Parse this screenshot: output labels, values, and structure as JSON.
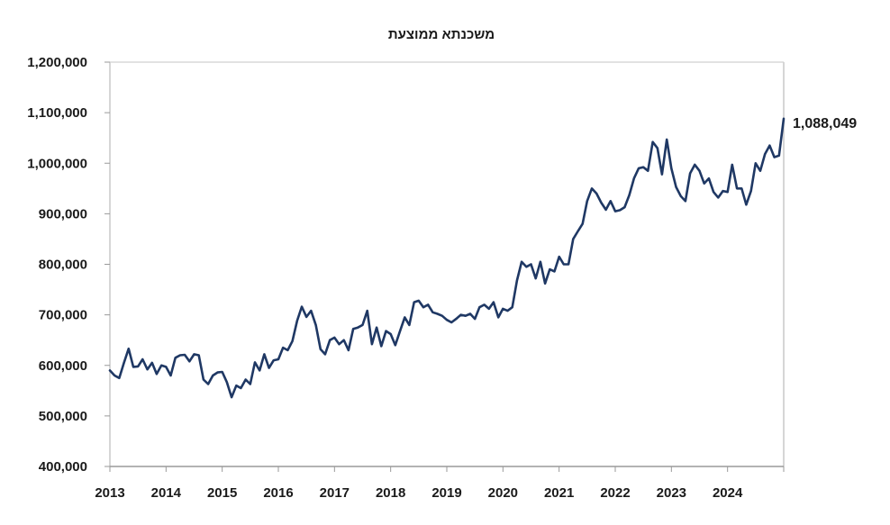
{
  "chart_data": {
    "type": "line",
    "title": "משכנתא ממוצעת",
    "xlabel": "",
    "ylabel": "",
    "xlim": [
      2013,
      2025
    ],
    "ylim": [
      400000,
      1200000
    ],
    "x_ticks": [
      2013,
      2014,
      2015,
      2016,
      2017,
      2018,
      2019,
      2020,
      2021,
      2022,
      2023,
      2024
    ],
    "x_tick_labels": [
      "2013",
      "2014",
      "2015",
      "2016",
      "2017",
      "2018",
      "2019",
      "2020",
      "2021",
      "2022",
      "2023",
      "2024"
    ],
    "y_ticks": [
      400000,
      500000,
      600000,
      700000,
      800000,
      900000,
      1000000,
      1100000,
      1200000
    ],
    "y_tick_labels": [
      "400,000",
      "500,000",
      "600,000",
      "700,000",
      "800,000",
      "900,000",
      "1,000,000",
      "1,100,000",
      "1,200,000"
    ],
    "grid": false,
    "legend": "none",
    "line_color": "#1f3864",
    "end_label": "1,088,049",
    "series": [
      {
        "x": [
          2013.0,
          2013.083,
          2013.167,
          2013.25,
          2013.333,
          2013.417,
          2013.5,
          2013.583,
          2013.667,
          2013.75,
          2013.833,
          2013.917,
          2014.0,
          2014.083,
          2014.167,
          2014.25,
          2014.333,
          2014.417,
          2014.5,
          2014.583,
          2014.667,
          2014.75,
          2014.833,
          2014.917,
          2015.0,
          2015.083,
          2015.167,
          2015.25,
          2015.333,
          2015.417,
          2015.5,
          2015.583,
          2015.667,
          2015.75,
          2015.833,
          2015.917,
          2016.0,
          2016.083,
          2016.167,
          2016.25,
          2016.333,
          2016.417,
          2016.5,
          2016.583,
          2016.667,
          2016.75,
          2016.833,
          2016.917,
          2017.0,
          2017.083,
          2017.167,
          2017.25,
          2017.333,
          2017.417,
          2017.5,
          2017.583,
          2017.667,
          2017.75,
          2017.833,
          2017.917,
          2018.0,
          2018.083,
          2018.167,
          2018.25,
          2018.333,
          2018.417,
          2018.5,
          2018.583,
          2018.667,
          2018.75,
          2018.833,
          2018.917,
          2019.0,
          2019.083,
          2019.167,
          2019.25,
          2019.333,
          2019.417,
          2019.5,
          2019.583,
          2019.667,
          2019.75,
          2019.833,
          2019.917,
          2020.0,
          2020.083,
          2020.167,
          2020.25,
          2020.333,
          2020.417,
          2020.5,
          2020.583,
          2020.667,
          2020.75,
          2020.833,
          2020.917,
          2021.0,
          2021.083,
          2021.167,
          2021.25,
          2021.333,
          2021.417,
          2021.5,
          2021.583,
          2021.667,
          2021.75,
          2021.833,
          2021.917,
          2022.0,
          2022.083,
          2022.167,
          2022.25,
          2022.333,
          2022.417,
          2022.5,
          2022.583,
          2022.667,
          2022.75,
          2022.833,
          2022.917,
          2023.0,
          2023.083,
          2023.167,
          2023.25,
          2023.333,
          2023.417,
          2023.5,
          2023.583,
          2023.667,
          2023.75,
          2023.833,
          2023.917,
          2024.0,
          2024.083,
          2024.167,
          2024.25,
          2024.333,
          2024.417,
          2024.5,
          2024.583,
          2024.667,
          2024.75,
          2024.833,
          2024.917
        ],
        "y": [
          590000,
          580000,
          575000,
          605000,
          633000,
          597000,
          598000,
          612000,
          592000,
          605000,
          583000,
          600000,
          597000,
          580000,
          615000,
          620000,
          621000,
          608000,
          622000,
          620000,
          572000,
          563000,
          580000,
          586000,
          587000,
          567000,
          537000,
          560000,
          555000,
          572000,
          563000,
          606000,
          590000,
          622000,
          595000,
          610000,
          612000,
          635000,
          630000,
          648000,
          688000,
          716000,
          696000,
          708000,
          680000,
          632000,
          622000,
          650000,
          655000,
          642000,
          650000,
          630000,
          672000,
          675000,
          680000,
          708000,
          642000,
          675000,
          638000,
          668000,
          662000,
          640000,
          668000,
          695000,
          680000,
          725000,
          728000,
          715000,
          720000,
          705000,
          702000,
          698000,
          690000,
          685000,
          692000,
          700000,
          698000,
          702000,
          692000,
          715000,
          720000,
          712000,
          725000,
          695000,
          712000,
          708000,
          715000,
          768000,
          805000,
          795000,
          800000,
          772000,
          805000,
          762000,
          790000,
          786000,
          815000,
          800000,
          800000,
          850000,
          865000,
          880000,
          925000,
          950000,
          940000,
          922000,
          908000,
          925000,
          905000,
          907000,
          913000,
          937000,
          970000,
          990000,
          992000,
          985000,
          1042000,
          1030000,
          978000,
          1047000,
          990000,
          953000,
          935000,
          925000,
          980000,
          997000,
          985000,
          960000,
          970000,
          943000,
          932000,
          945000,
          943000,
          997000,
          950000,
          950000,
          918000,
          945000,
          1000000,
          985000,
          1018000,
          1035000,
          1012000,
          1015000
        ]
      }
    ],
    "end_point": {
      "x": 2025.0,
      "y": 1088049
    }
  }
}
